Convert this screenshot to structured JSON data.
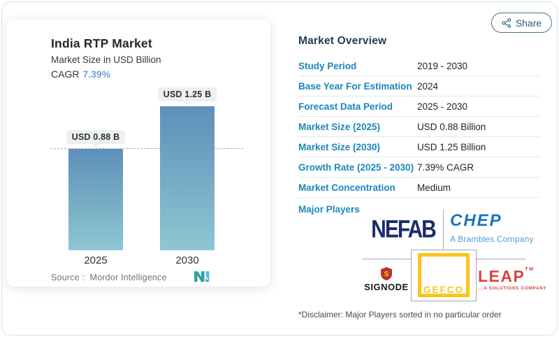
{
  "share": {
    "label": "Share"
  },
  "chart_card": {
    "title": "India RTP Market",
    "subtitle": "Market Size in USD Billion",
    "cagr_label": "CAGR",
    "cagr_value": "7.39%",
    "source_label": "Source :",
    "source_name": "Mordor Intelligence"
  },
  "chart_data": {
    "type": "bar",
    "title": "India RTP Market",
    "subtitle": "Market Size in USD Billion",
    "categories": [
      "2025",
      "2030"
    ],
    "values": [
      0.88,
      1.25
    ],
    "value_labels": [
      "USD 0.88 B",
      "USD 1.25 B"
    ],
    "unit": "USD Billion",
    "cagr_percent": 7.39,
    "ylim": [
      0,
      1.45
    ],
    "grid": false,
    "reference_line": {
      "style": "dashed",
      "value": 0.88
    },
    "bar_color_top": "#5e8fba",
    "bar_color_bottom": "#8ec7d2"
  },
  "overview": {
    "title": "Market Overview",
    "rows": [
      {
        "label": "Study Period",
        "value": "2019 - 2030"
      },
      {
        "label": "Base Year For Estimation",
        "value": "2024"
      },
      {
        "label": "Forecast Data Period",
        "value": "2025 - 2030"
      },
      {
        "label": "Market Size (2025)",
        "value": "USD 0.88 Billion"
      },
      {
        "label": "Market Size (2030)",
        "value": "USD 1.25 Billion"
      },
      {
        "label": "Growth Rate (2025 - 2030)",
        "value": "7.39% CAGR"
      },
      {
        "label": "Market Concentration",
        "value": "Medium"
      }
    ],
    "major_players": {
      "label": "Major Players",
      "nefab": "NEFAB",
      "chep": "CHEP",
      "chep_tagline": "A Brambles Company",
      "signode": "SIGNODE",
      "gefco": "GEFCO",
      "leap": "LEAP",
      "leap_tagline": "...A SOLUTIONS COMPANY"
    },
    "disclaimer": "*Disclaimer: Major Players sorted in no particular order"
  },
  "colors": {
    "accent_blue": "#1a86bc",
    "heading_navy": "#1d3c55",
    "cagr_blue": "#73a2d3",
    "nefab_navy": "#1c2d6b",
    "chep_blue": "#1b75bc",
    "chep_light_blue": "#4aa0d8",
    "signode_red": "#b5342c",
    "gefco_yellow": "#fbc51a",
    "leap_red": "#d8453c"
  }
}
